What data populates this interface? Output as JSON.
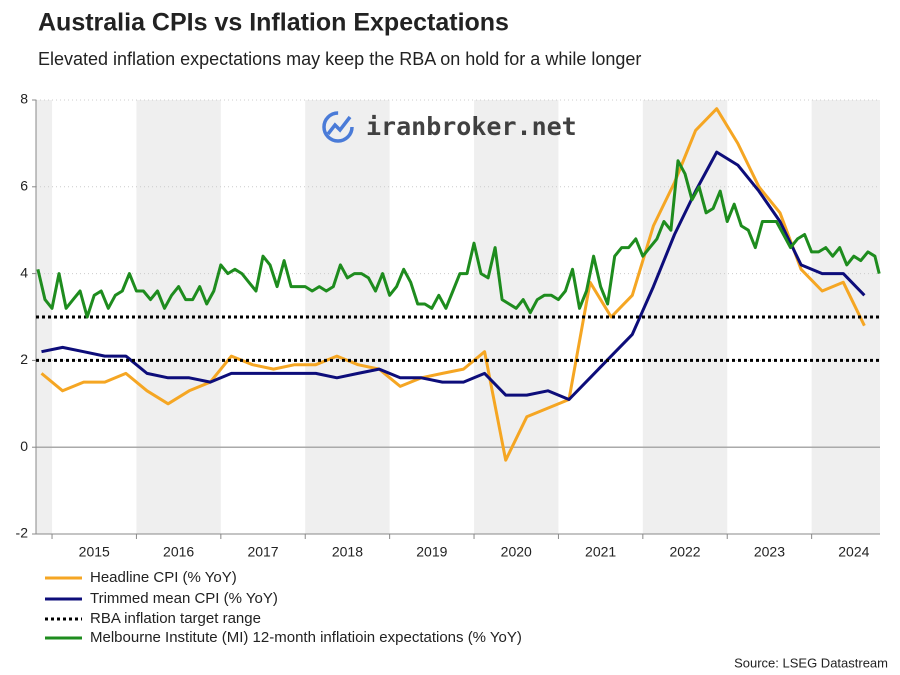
{
  "chart_data": {
    "type": "line",
    "title": "Australia CPIs vs Inflation Expectations",
    "subtitle": "Elevated inflation expectations may keep the RBA on hold for a while longer",
    "watermark": "iranbroker.net",
    "source": "Source: LSEG Datastream",
    "xlim": [
      2014.81,
      2024.81
    ],
    "xticks": [
      2015,
      2016,
      2017,
      2018,
      2019,
      2020,
      2021,
      2022,
      2023,
      2024
    ],
    "ylim": [
      -2,
      8
    ],
    "yticks": [
      -2,
      0,
      2,
      4,
      6,
      8
    ],
    "grid": true,
    "series": [
      {
        "name": "Headline CPI (% YoY)",
        "color": "#f5a623",
        "x": [
          2014.875,
          2015.125,
          2015.375,
          2015.625,
          2015.875,
          2016.125,
          2016.375,
          2016.625,
          2016.875,
          2017.125,
          2017.375,
          2017.625,
          2017.875,
          2018.125,
          2018.375,
          2018.625,
          2018.875,
          2019.125,
          2019.375,
          2019.625,
          2019.875,
          2020.125,
          2020.375,
          2020.625,
          2020.875,
          2021.125,
          2021.375,
          2021.625,
          2021.875,
          2022.125,
          2022.375,
          2022.625,
          2022.875,
          2023.125,
          2023.375,
          2023.625,
          2023.875,
          2024.125,
          2024.375,
          2024.625
        ],
        "values": [
          1.7,
          1.3,
          1.5,
          1.5,
          1.7,
          1.3,
          1.0,
          1.3,
          1.5,
          2.1,
          1.9,
          1.8,
          1.9,
          1.9,
          2.1,
          1.9,
          1.8,
          1.4,
          1.6,
          1.7,
          1.8,
          2.2,
          -0.3,
          0.7,
          0.9,
          1.1,
          3.8,
          3.0,
          3.5,
          5.1,
          6.1,
          7.3,
          7.8,
          7.0,
          6.0,
          5.4,
          4.1,
          3.6,
          3.8,
          2.8
        ]
      },
      {
        "name": "Trimmed mean CPI (% YoY)",
        "color": "#0d0d7a",
        "x": [
          2014.875,
          2015.125,
          2015.375,
          2015.625,
          2015.875,
          2016.125,
          2016.375,
          2016.625,
          2016.875,
          2017.125,
          2017.375,
          2017.625,
          2017.875,
          2018.125,
          2018.375,
          2018.625,
          2018.875,
          2019.125,
          2019.375,
          2019.625,
          2019.875,
          2020.125,
          2020.375,
          2020.625,
          2020.875,
          2021.125,
          2021.375,
          2021.625,
          2021.875,
          2022.125,
          2022.375,
          2022.625,
          2022.875,
          2023.125,
          2023.375,
          2023.625,
          2023.875,
          2024.125,
          2024.375,
          2024.625
        ],
        "values": [
          2.2,
          2.3,
          2.2,
          2.1,
          2.1,
          1.7,
          1.6,
          1.6,
          1.5,
          1.7,
          1.7,
          1.7,
          1.7,
          1.7,
          1.6,
          1.7,
          1.8,
          1.6,
          1.6,
          1.5,
          1.5,
          1.7,
          1.2,
          1.2,
          1.3,
          1.1,
          1.6,
          2.1,
          2.6,
          3.7,
          4.9,
          5.9,
          6.8,
          6.5,
          5.9,
          5.2,
          4.2,
          4.0,
          4.0,
          3.5
        ]
      },
      {
        "name": "RBA inflation target range",
        "color": "#000000",
        "reference_values": [
          2,
          3
        ]
      },
      {
        "name": "Melbourne Institute (MI) 12-month inflatioin expectations (% YoY)",
        "color": "#1e8c1e",
        "x": [
          2014.833,
          2014.917,
          2015.0,
          2015.083,
          2015.167,
          2015.25,
          2015.333,
          2015.417,
          2015.5,
          2015.583,
          2015.667,
          2015.75,
          2015.833,
          2015.917,
          2016.0,
          2016.083,
          2016.167,
          2016.25,
          2016.333,
          2016.417,
          2016.5,
          2016.583,
          2016.667,
          2016.75,
          2016.833,
          2016.917,
          2017.0,
          2017.083,
          2017.167,
          2017.25,
          2017.333,
          2017.417,
          2017.5,
          2017.583,
          2017.667,
          2017.75,
          2017.833,
          2017.917,
          2018.0,
          2018.083,
          2018.167,
          2018.25,
          2018.333,
          2018.417,
          2018.5,
          2018.583,
          2018.667,
          2018.75,
          2018.833,
          2018.917,
          2019.0,
          2019.083,
          2019.167,
          2019.25,
          2019.333,
          2019.417,
          2019.5,
          2019.583,
          2019.667,
          2019.75,
          2019.833,
          2019.917,
          2020.0,
          2020.083,
          2020.167,
          2020.25,
          2020.333,
          2020.417,
          2020.5,
          2020.583,
          2020.667,
          2020.75,
          2020.833,
          2020.917,
          2021.0,
          2021.083,
          2021.167,
          2021.25,
          2021.333,
          2021.417,
          2021.5,
          2021.583,
          2021.667,
          2021.75,
          2021.833,
          2021.917,
          2022.0,
          2022.083,
          2022.167,
          2022.25,
          2022.333,
          2022.417,
          2022.5,
          2022.583,
          2022.667,
          2022.75,
          2022.833,
          2022.917,
          2023.0,
          2023.083,
          2023.167,
          2023.25,
          2023.333,
          2023.417,
          2023.5,
          2023.583,
          2023.667,
          2023.75,
          2023.833,
          2023.917,
          2024.0,
          2024.083,
          2024.167,
          2024.25,
          2024.333,
          2024.417,
          2024.5,
          2024.583,
          2024.667,
          2024.75,
          2024.8
        ],
        "values": [
          4.1,
          3.4,
          3.2,
          4.0,
          3.2,
          3.4,
          3.6,
          3.0,
          3.5,
          3.6,
          3.2,
          3.5,
          3.6,
          4.0,
          3.6,
          3.6,
          3.4,
          3.6,
          3.2,
          3.5,
          3.7,
          3.4,
          3.4,
          3.7,
          3.3,
          3.6,
          4.2,
          4.0,
          4.1,
          4.0,
          3.8,
          3.6,
          4.4,
          4.2,
          3.7,
          4.3,
          3.7,
          3.7,
          3.7,
          3.6,
          3.7,
          3.6,
          3.7,
          4.2,
          3.9,
          4.0,
          4.0,
          3.9,
          3.6,
          4.0,
          3.5,
          3.7,
          4.1,
          3.8,
          3.3,
          3.3,
          3.2,
          3.5,
          3.2,
          3.6,
          4.0,
          4.0,
          4.7,
          4.0,
          3.9,
          4.6,
          3.4,
          3.3,
          3.2,
          3.4,
          3.1,
          3.4,
          3.5,
          3.5,
          3.4,
          3.6,
          4.1,
          3.2,
          3.6,
          4.4,
          3.7,
          3.3,
          4.4,
          4.6,
          4.6,
          4.8,
          4.4,
          4.6,
          4.8,
          5.2,
          5.0,
          6.6,
          6.3,
          5.7,
          6.0,
          5.4,
          5.5,
          5.9,
          5.2,
          5.6,
          5.1,
          5.0,
          4.6,
          5.2,
          5.2,
          5.2,
          4.9,
          4.6,
          4.8,
          4.9,
          4.5,
          4.5,
          4.6,
          4.4,
          4.6,
          4.2,
          4.4,
          4.3,
          4.5,
          4.4,
          4.0
        ]
      }
    ]
  }
}
